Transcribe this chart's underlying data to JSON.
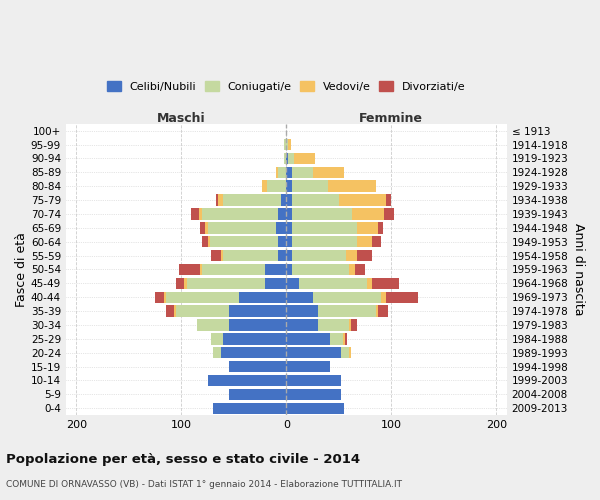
{
  "age_groups": [
    "0-4",
    "5-9",
    "10-14",
    "15-19",
    "20-24",
    "25-29",
    "30-34",
    "35-39",
    "40-44",
    "45-49",
    "50-54",
    "55-59",
    "60-64",
    "65-69",
    "70-74",
    "75-79",
    "80-84",
    "85-89",
    "90-94",
    "95-99",
    "100+"
  ],
  "birth_years": [
    "2009-2013",
    "2004-2008",
    "1999-2003",
    "1994-1998",
    "1989-1993",
    "1984-1988",
    "1979-1983",
    "1974-1978",
    "1969-1973",
    "1964-1968",
    "1959-1963",
    "1954-1958",
    "1949-1953",
    "1944-1948",
    "1939-1943",
    "1934-1938",
    "1929-1933",
    "1924-1928",
    "1919-1923",
    "1914-1918",
    "≤ 1913"
  ],
  "males_celibi": [
    70,
    55,
    75,
    55,
    62,
    60,
    55,
    55,
    45,
    20,
    20,
    8,
    8,
    10,
    8,
    5,
    0,
    0,
    0,
    0,
    0
  ],
  "males_coniugati": [
    0,
    0,
    0,
    0,
    8,
    12,
    30,
    50,
    70,
    75,
    60,
    52,
    65,
    65,
    72,
    55,
    18,
    8,
    2,
    2,
    0
  ],
  "males_vedovi": [
    0,
    0,
    0,
    0,
    0,
    0,
    0,
    2,
    2,
    2,
    2,
    2,
    2,
    2,
    3,
    5,
    5,
    2,
    0,
    0,
    0
  ],
  "males_divorziati": [
    0,
    0,
    0,
    0,
    0,
    0,
    0,
    8,
    8,
    8,
    20,
    10,
    5,
    5,
    8,
    2,
    0,
    0,
    0,
    0,
    0
  ],
  "females_nubili": [
    55,
    52,
    52,
    42,
    52,
    42,
    30,
    30,
    25,
    12,
    5,
    5,
    5,
    5,
    5,
    5,
    5,
    5,
    2,
    0,
    0
  ],
  "females_coniugate": [
    0,
    0,
    0,
    0,
    8,
    12,
    30,
    55,
    65,
    65,
    55,
    52,
    62,
    62,
    58,
    45,
    35,
    20,
    5,
    2,
    0
  ],
  "females_vedove": [
    0,
    0,
    0,
    0,
    2,
    2,
    2,
    2,
    5,
    5,
    5,
    10,
    15,
    20,
    30,
    45,
    45,
    30,
    20,
    2,
    0
  ],
  "females_divorziate": [
    0,
    0,
    0,
    0,
    0,
    2,
    5,
    10,
    30,
    25,
    10,
    15,
    8,
    5,
    10,
    5,
    0,
    0,
    0,
    0,
    0
  ],
  "color_celibi": "#4472C4",
  "color_coniugati": "#C5D9A0",
  "color_vedovi": "#F5C262",
  "color_divorziati": "#C0504D",
  "xlim": [
    -210,
    210
  ],
  "xticks": [
    -200,
    -100,
    0,
    100,
    200
  ],
  "xticklabels": [
    "200",
    "100",
    "0",
    "100",
    "200"
  ],
  "title": "Popolazione per età, sesso e stato civile - 2014",
  "subtitle": "COMUNE DI ORNAVASSO (VB) - Dati ISTAT 1° gennaio 2014 - Elaborazione TUTTITALIA.IT",
  "ylabel_left": "Fasce di età",
  "ylabel_right": "Anni di nascita",
  "maschi_label": "Maschi",
  "femmine_label": "Femmine",
  "bg_color": "#eeeeee",
  "plot_bg": "#ffffff",
  "legend_labels": [
    "Celibi/Nubili",
    "Coniugati/e",
    "Vedovi/e",
    "Divorziati/e"
  ],
  "grid_color": "#cccccc"
}
